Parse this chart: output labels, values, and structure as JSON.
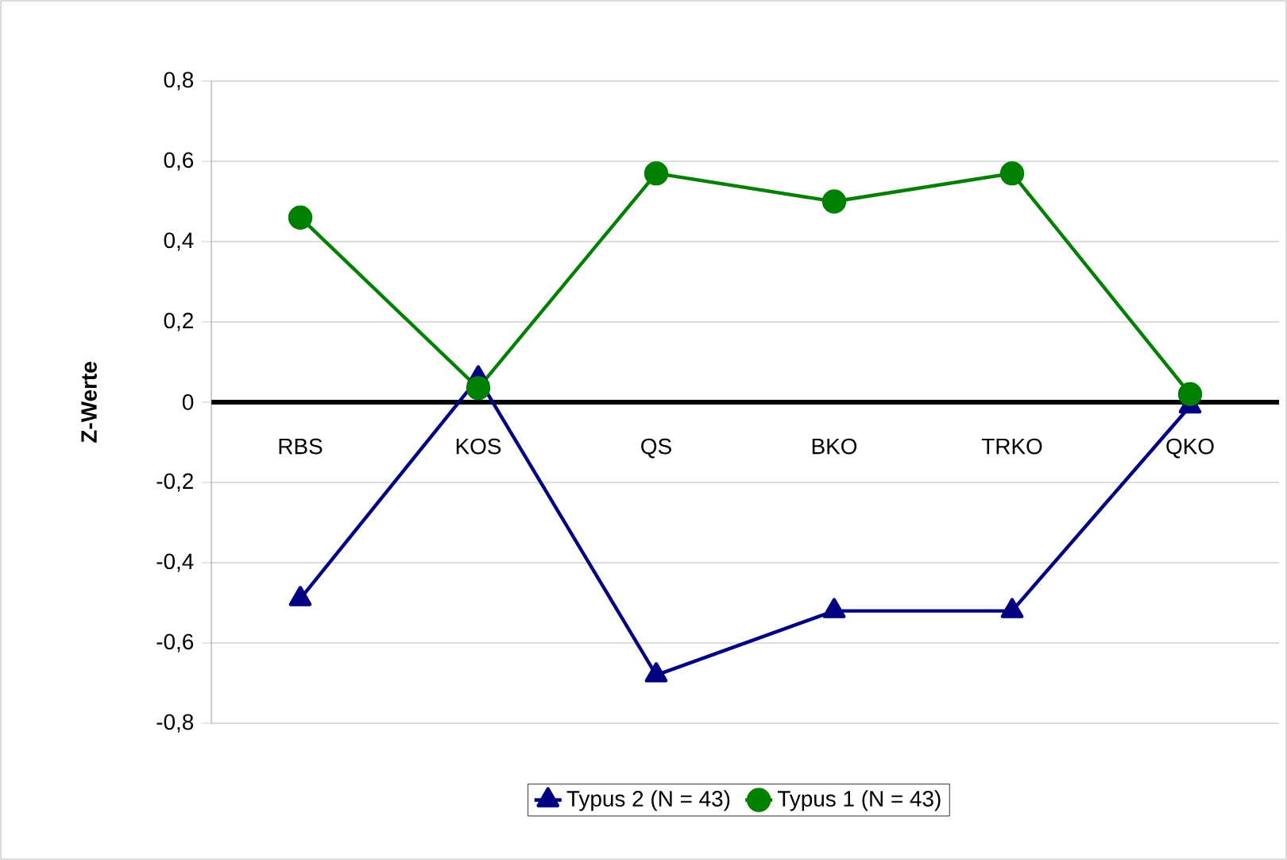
{
  "chart_data": {
    "type": "line",
    "ylabel": "**Z-Werte**",
    "categories": [
      "RBS",
      "KOS",
      "QS",
      "BKO",
      "TRKO",
      "QKO"
    ],
    "series": [
      {
        "name": "Typus 2 (N = 43)",
        "color": "#000080",
        "marker": "triangle",
        "values": [
          -0.49,
          0.06,
          -0.68,
          -0.52,
          -0.52,
          -0.01
        ]
      },
      {
        "name": "Typus 1 (N = 43)",
        "color": "#008000",
        "marker": "circle",
        "values": [
          0.46,
          0.035,
          0.57,
          0.5,
          0.57,
          0.02
        ]
      }
    ],
    "ylim": [
      -0.8,
      0.8
    ],
    "yticks": [
      {
        "value": -0.8,
        "label": "-0,8"
      },
      {
        "value": -0.6,
        "label": "-0,6"
      },
      {
        "value": -0.4,
        "label": "-0,4"
      },
      {
        "value": -0.2,
        "label": "-0,2"
      },
      0,
      {
        "value": 0.2,
        "label": "0,2"
      },
      {
        "value": 0.4,
        "label": "0,4"
      },
      {
        "value": 0.6,
        "label": "0,6"
      },
      {
        "value": 0.8,
        "label": "0,8"
      }
    ],
    "grid": "y",
    "legend": "bottom",
    "line_style": "solid"
  }
}
